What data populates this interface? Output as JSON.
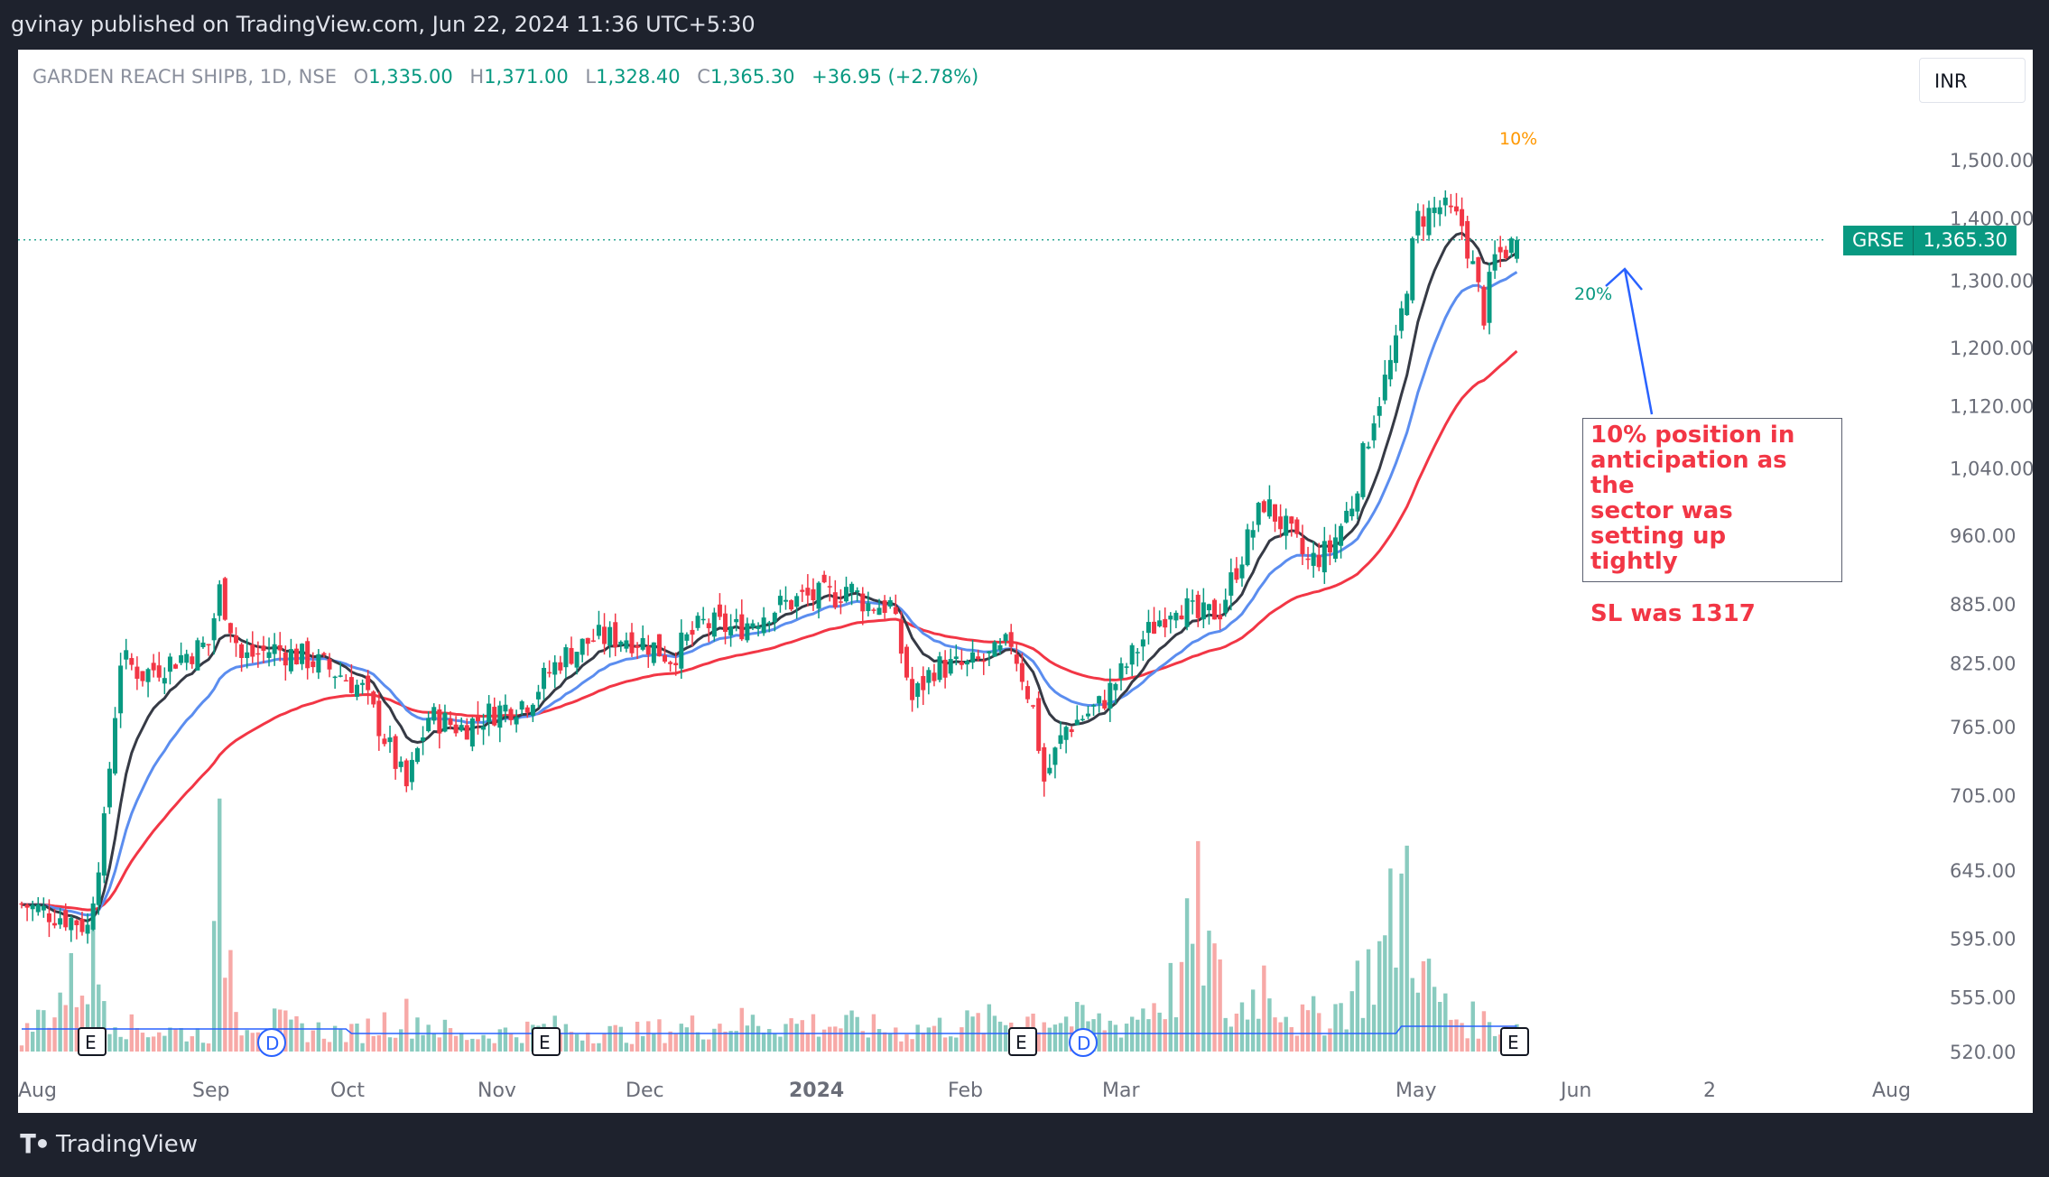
{
  "header": {
    "published_text": "gvinay published on TradingView.com, Jun 22, 2024 11:36 UTC+5:30"
  },
  "legend": {
    "symbol_text": "GARDEN REACH SHIPB, 1D, NSE",
    "open_label": "O",
    "open": "1,335.00",
    "high_label": "H",
    "high": "1,371.00",
    "low_label": "L",
    "low": "1,328.40",
    "close_label": "C",
    "close": "1,365.30",
    "change": "+36.95 (+2.78%)"
  },
  "currency": "INR",
  "price_tag": {
    "symbol": "GRSE",
    "price": "1,365.30",
    "value": 1365.3
  },
  "annotation": {
    "lines": [
      "10% position in",
      "anticipation as the",
      "sector was setting up",
      "tightly"
    ],
    "sl_text": "SL was 1317"
  },
  "markers": {
    "high_pct": "10%",
    "low_pct": "20%"
  },
  "footer": {
    "brand": "TradingView"
  },
  "colors": {
    "up": "#089981",
    "down": "#f23645",
    "ema_fast": "#363a45",
    "ema_mid": "#5b8def",
    "ema_slow": "#f23645",
    "volume_up": "#89cbbf",
    "volume_down": "#f7a9a7",
    "volume_avg": "#2962ff",
    "arrow": "#2962ff",
    "axis_text": "#6a6d78",
    "marker_orange": "#ff9800",
    "marker_green": "#089981"
  },
  "chart_data": {
    "type": "candlestick",
    "title": "GARDEN REACH SHIPB, 1D, NSE",
    "y_axis_ticks": [
      520,
      555,
      595,
      645,
      705,
      765,
      825,
      885,
      960,
      1040,
      1120,
      1200,
      1300,
      1400,
      1500
    ],
    "y_axis_labels": [
      "520.00",
      "555.00",
      "595.00",
      "645.00",
      "705.00",
      "765.00",
      "825.00",
      "885.00",
      "960.00",
      "1,040.00",
      "1,120.00",
      "1,200.00",
      "1,300.00",
      "1,400.00",
      "1,500.00"
    ],
    "x_axis_labels": [
      "Aug",
      "Sep",
      "Oct",
      "Nov",
      "Dec",
      "2024",
      "Feb",
      "Mar",
      "May",
      "Jun",
      "2",
      "Aug"
    ],
    "price_scale": "log",
    "event_markers": [
      "E",
      "D",
      "E",
      "E",
      "D",
      "E"
    ],
    "price_anchors": [
      [
        0,
        620
      ],
      [
        10,
        608
      ],
      [
        12,
        603
      ],
      [
        15,
        680
      ],
      [
        18,
        830
      ],
      [
        22,
        815
      ],
      [
        28,
        830
      ],
      [
        34,
        845
      ],
      [
        36,
        900
      ],
      [
        40,
        830
      ],
      [
        46,
        840
      ],
      [
        52,
        830
      ],
      [
        58,
        815
      ],
      [
        62,
        800
      ],
      [
        67,
        745
      ],
      [
        70,
        712
      ],
      [
        74,
        775
      ],
      [
        80,
        765
      ],
      [
        86,
        780
      ],
      [
        92,
        790
      ],
      [
        98,
        830
      ],
      [
        104,
        850
      ],
      [
        110,
        852
      ],
      [
        114,
        845
      ],
      [
        118,
        832
      ],
      [
        124,
        865
      ],
      [
        130,
        860
      ],
      [
        136,
        880
      ],
      [
        142,
        892
      ],
      [
        148,
        895
      ],
      [
        150,
        905
      ],
      [
        154,
        885
      ],
      [
        158,
        885
      ],
      [
        162,
        790
      ],
      [
        166,
        822
      ],
      [
        172,
        822
      ],
      [
        178,
        835
      ],
      [
        180,
        848
      ],
      [
        184,
        782
      ],
      [
        186,
        718
      ],
      [
        190,
        765
      ],
      [
        196,
        785
      ],
      [
        200,
        815
      ],
      [
        204,
        850
      ],
      [
        210,
        890
      ],
      [
        214,
        870
      ],
      [
        218,
        880
      ],
      [
        222,
        940
      ],
      [
        226,
        1000
      ],
      [
        230,
        968
      ],
      [
        234,
        930
      ],
      [
        238,
        945
      ],
      [
        242,
        1000
      ],
      [
        246,
        1110
      ],
      [
        250,
        1200
      ],
      [
        254,
        1400
      ],
      [
        258,
        1420
      ],
      [
        262,
        1390
      ],
      [
        264,
        1320
      ],
      [
        266,
        1250
      ],
      [
        268,
        1335
      ],
      [
        272,
        1366
      ]
    ],
    "volume_anchors": [
      [
        0,
        0.05
      ],
      [
        13,
        0.3
      ],
      [
        16,
        0.15
      ],
      [
        20,
        0.08
      ],
      [
        34,
        0.06
      ],
      [
        36,
        0.55
      ],
      [
        38,
        0.32
      ],
      [
        40,
        0.12
      ],
      [
        50,
        0.08
      ],
      [
        60,
        0.06
      ],
      [
        66,
        0.1
      ],
      [
        70,
        0.12
      ],
      [
        80,
        0.05
      ],
      [
        96,
        0.08
      ],
      [
        110,
        0.06
      ],
      [
        130,
        0.1
      ],
      [
        150,
        0.09
      ],
      [
        160,
        0.07
      ],
      [
        185,
        0.12
      ],
      [
        200,
        0.09
      ],
      [
        210,
        0.22
      ],
      [
        214,
        0.45
      ],
      [
        220,
        0.1
      ],
      [
        226,
        0.25
      ],
      [
        232,
        0.1
      ],
      [
        240,
        0.15
      ],
      [
        248,
        0.35
      ],
      [
        252,
        0.6
      ],
      [
        255,
        0.25
      ],
      [
        260,
        0.12
      ],
      [
        272,
        0.08
      ]
    ]
  }
}
